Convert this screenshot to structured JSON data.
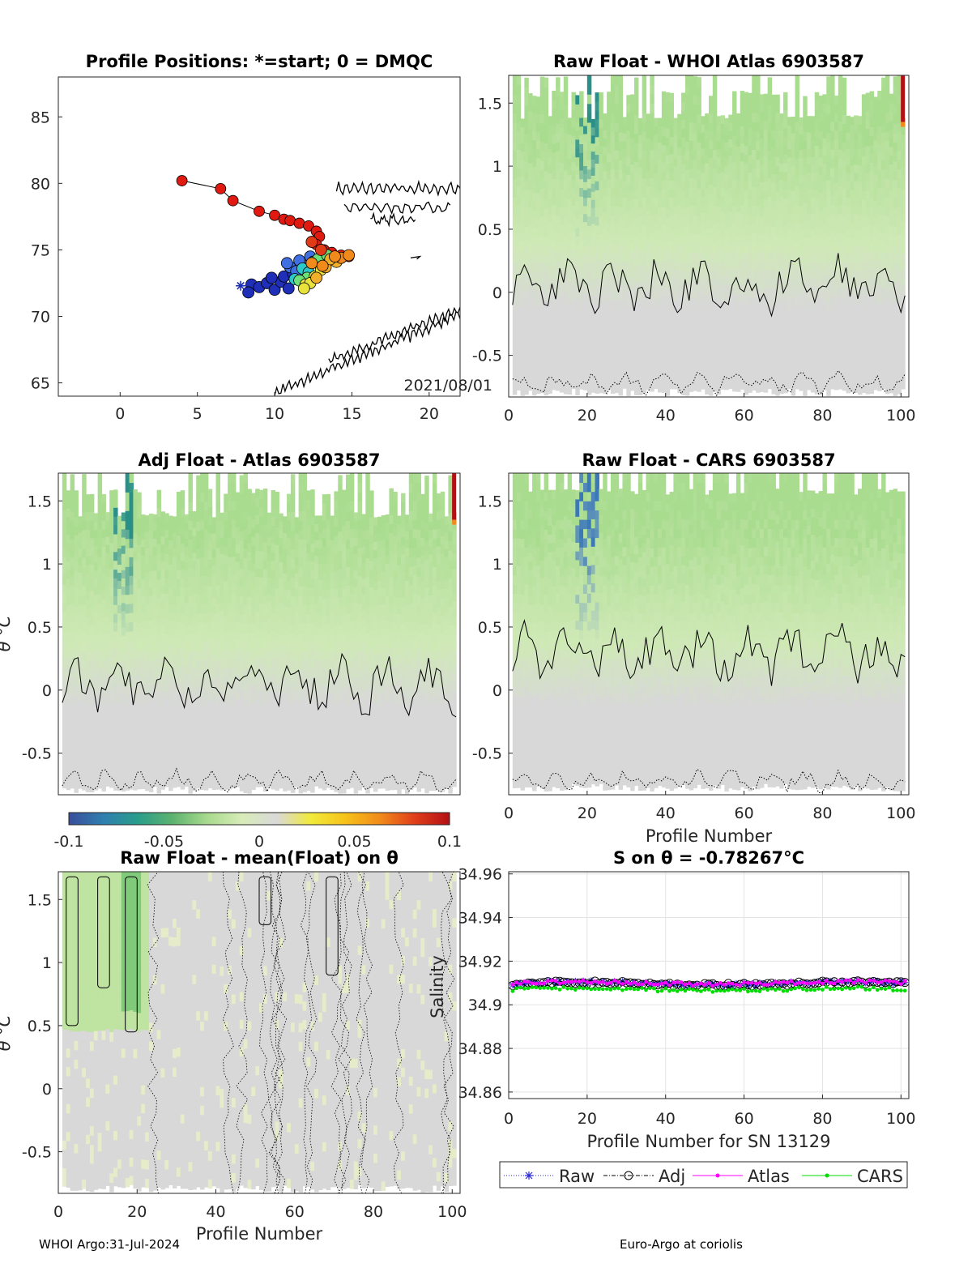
{
  "footer": {
    "left": "WHOI Argo:31-Jul-2024",
    "right": "Euro-Argo at coriolis"
  },
  "colorbar": {
    "min": -0.1,
    "max": 0.1,
    "ticks": [
      "-0.1",
      "-0.05",
      "0",
      "0.05",
      "0.1"
    ],
    "colors": [
      "#3a4e9a",
      "#2f7fb0",
      "#2a9d8a",
      "#5db36f",
      "#a8da8e",
      "#d8ecb8",
      "#d9d9d9",
      "#f1ea3a",
      "#f7c21a",
      "#f18a1a",
      "#e03e1a",
      "#b30f14"
    ]
  },
  "chart_data": [
    {
      "type": "scatter",
      "id": "map",
      "title": "Profile Positions: *=start; 0 = DMQC",
      "xlim": [
        -4,
        22
      ],
      "ylim": [
        64,
        88
      ],
      "xticks": [
        "0",
        "5",
        "10",
        "15",
        "20"
      ],
      "yticks": [
        "65",
        "70",
        "75",
        "80",
        "85"
      ],
      "annotation": "2021/08/01",
      "track": [
        [
          4.0,
          80.2
        ],
        [
          6.5,
          79.6
        ],
        [
          7.3,
          78.7
        ],
        [
          9.0,
          77.9
        ],
        [
          10.0,
          77.6
        ],
        [
          10.6,
          77.3
        ],
        [
          11.0,
          77.2
        ],
        [
          11.6,
          77.0
        ],
        [
          12.2,
          76.8
        ],
        [
          12.7,
          76.4
        ],
        [
          12.9,
          76.0
        ],
        [
          12.7,
          75.4
        ],
        [
          13.2,
          75.0
        ],
        [
          13.7,
          74.8
        ],
        [
          14.3,
          74.6
        ],
        [
          14.8,
          74.5
        ]
      ],
      "start": [
        7.8,
        72.3
      ],
      "clusters": [
        {
          "color": "#1f2fb8",
          "points": [
            [
              8.5,
              72.4
            ],
            [
              9.0,
              72.2
            ],
            [
              9.5,
              72.5
            ],
            [
              10.0,
              72.0
            ],
            [
              10.4,
              72.6
            ],
            [
              9.8,
              72.9
            ],
            [
              8.3,
              71.8
            ],
            [
              10.9,
              72.1
            ],
            [
              10.6,
              73.0
            ],
            [
              11.2,
              73.2
            ]
          ]
        },
        {
          "color": "#3f6fe0",
          "points": [
            [
              11.0,
              73.7
            ],
            [
              11.4,
              73.4
            ],
            [
              12.0,
              73.9
            ],
            [
              11.6,
              74.2
            ],
            [
              10.8,
              74.0
            ],
            [
              12.3,
              74.5
            ]
          ]
        },
        {
          "color": "#2dc9c9",
          "points": [
            [
              11.8,
              73.6
            ],
            [
              12.5,
              74.1
            ],
            [
              13.1,
              74.4
            ],
            [
              12.2,
              73.3
            ],
            [
              11.3,
              72.8
            ]
          ]
        },
        {
          "color": "#6de07a",
          "points": [
            [
              12.8,
              74.3
            ],
            [
              13.4,
              74.6
            ],
            [
              12.1,
              72.9
            ],
            [
              11.6,
              72.7
            ]
          ]
        },
        {
          "color": "#e8e23a",
          "points": [
            [
              12.0,
              72.4
            ],
            [
              12.6,
              73.0
            ],
            [
              13.0,
              73.5
            ],
            [
              12.3,
              72.5
            ],
            [
              11.9,
              72.1
            ]
          ]
        },
        {
          "color": "#f0b02a",
          "points": [
            [
              13.3,
              73.7
            ],
            [
              14.0,
              74.1
            ],
            [
              13.6,
              74.3
            ],
            [
              12.7,
              72.9
            ]
          ]
        },
        {
          "color": "#f08a1a",
          "points": [
            [
              14.3,
              74.4
            ],
            [
              14.8,
              74.6
            ],
            [
              13.9,
              74.5
            ],
            [
              12.4,
              74.0
            ],
            [
              13.1,
              73.8
            ]
          ]
        },
        {
          "color": "#e03a16",
          "points": [
            [
              13.0,
              75.0
            ],
            [
              12.4,
              75.6
            ]
          ]
        }
      ]
    },
    {
      "type": "heatmap",
      "id": "whoi",
      "title": "Raw Float - WHOI Atlas  6903587",
      "xlim": [
        0,
        102
      ],
      "ylim": [
        -0.83,
        1.72
      ],
      "xticks": [
        "0",
        "20",
        "40",
        "60",
        "80",
        "100"
      ],
      "yticks": [
        "1.5",
        "1",
        "0.5",
        "0",
        "-0.5"
      ]
    },
    {
      "type": "heatmap",
      "id": "adj",
      "title": "Adj Float - Atlas  6903587",
      "xlim": [
        0,
        102
      ],
      "ylim": [
        -0.83,
        1.72
      ],
      "ylabel": "θ °C",
      "xticks": [],
      "yticks": [
        "1.5",
        "1",
        "0.5",
        "0",
        "-0.5"
      ]
    },
    {
      "type": "heatmap",
      "id": "cars",
      "title": "Raw Float - CARS  6903587",
      "xlim": [
        0,
        102
      ],
      "ylim": [
        -0.83,
        1.72
      ],
      "xlabel": "Profile Number",
      "xticks": [
        "0",
        "20",
        "40",
        "60",
        "80",
        "100"
      ],
      "yticks": [
        "1.5",
        "1",
        "0.5",
        "0",
        "-0.5"
      ]
    },
    {
      "type": "heatmap",
      "id": "mean",
      "title": "Raw Float - mean(Float) on θ",
      "xlim": [
        0,
        102
      ],
      "ylim": [
        -0.83,
        1.72
      ],
      "xlabel": "Profile Number",
      "ylabel": "θ °C",
      "xticks": [
        "0",
        "20",
        "40",
        "60",
        "80",
        "100"
      ],
      "yticks": [
        "1.5",
        "1",
        "0.5",
        "0",
        "-0.5"
      ]
    },
    {
      "type": "line",
      "id": "sal",
      "title": "S on θ = -0.78267°C",
      "xlim": [
        0,
        102
      ],
      "ylim": [
        34.857,
        34.961
      ],
      "xlabel": "Profile Number for SN 13129",
      "ylabel": "Salinity",
      "xticks": [
        "0",
        "20",
        "40",
        "60",
        "80",
        "100"
      ],
      "yticks": [
        "34.96",
        "34.94",
        "34.92",
        "34.9",
        "34.88",
        "34.86"
      ],
      "series": [
        {
          "name": "Raw",
          "color": "#2b2bd6",
          "marker": "*",
          "mean": 34.9098
        },
        {
          "name": "Adj",
          "color": "#000000",
          "marker": "o",
          "mean": 34.9096
        },
        {
          "name": "Atlas",
          "color": "#ff00ff",
          "marker": ".",
          "mean": 34.91
        },
        {
          "name": "CARS",
          "color": "#00dd00",
          "marker": ".",
          "mean": 34.907
        }
      ]
    }
  ]
}
